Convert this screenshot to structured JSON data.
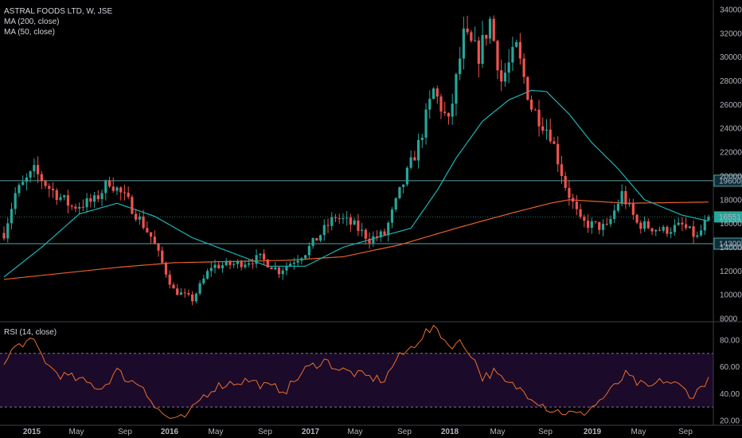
{
  "legend": {
    "symbol": "ASTRAL FOODS LTD, W, JSE",
    "ma200": "MA (200, close)",
    "ma50": "MA (50, close)",
    "rsi": "RSI (14, close)"
  },
  "colors": {
    "background": "#000000",
    "up": "#26a69a",
    "down": "#ef5350",
    "ma200": "#e8602c",
    "ma50": "#1ab5b8",
    "level_line": "#5f9ea0",
    "rsi_line": "#e8702c",
    "rsi_band": "#1c0a2a",
    "axis_text": "#b2b5be"
  },
  "chart_data": [
    {
      "type": "candlestick",
      "title": "ASTRAL FOODS LTD, W, JSE",
      "ylim": [
        7800,
        34600
      ],
      "y_ticks": [
        8000,
        10000,
        12000,
        14000,
        16000,
        18000,
        20000,
        22000,
        24000,
        26000,
        28000,
        30000,
        32000,
        34000
      ],
      "x_ticks": [
        "2015",
        "May",
        "Sep",
        "2016",
        "May",
        "Sep",
        "2017",
        "May",
        "Sep",
        "2018",
        "May",
        "Sep",
        "2019",
        "May",
        "Sep"
      ],
      "horizontal_levels": [
        {
          "value": 19600,
          "label": "19600"
        },
        {
          "value": 14300,
          "label": "14300"
        }
      ],
      "last_price": {
        "value": 16551,
        "label": "16551"
      },
      "price_path": [
        [
          0,
          15200
        ],
        [
          3,
          18500
        ],
        [
          8,
          20400
        ],
        [
          12,
          19000
        ],
        [
          18,
          17400
        ],
        [
          24,
          17900
        ],
        [
          28,
          19600
        ],
        [
          33,
          17800
        ],
        [
          39,
          14900
        ],
        [
          45,
          10400
        ],
        [
          50,
          9600
        ],
        [
          55,
          12400
        ],
        [
          62,
          12600
        ],
        [
          68,
          13100
        ],
        [
          73,
          12000
        ],
        [
          80,
          13600
        ],
        [
          88,
          16600
        ],
        [
          93,
          15800
        ],
        [
          97,
          14700
        ],
        [
          101,
          15100
        ],
        [
          105,
          18600
        ],
        [
          110,
          22600
        ],
        [
          114,
          27200
        ],
        [
          118,
          24400
        ],
        [
          122,
          31700
        ],
        [
          126,
          30200
        ],
        [
          129,
          33100
        ],
        [
          132,
          28000
        ],
        [
          136,
          30700
        ],
        [
          140,
          25800
        ],
        [
          145,
          23600
        ],
        [
          149,
          19200
        ],
        [
          153,
          16100
        ],
        [
          160,
          15600
        ],
        [
          164,
          18500
        ],
        [
          168,
          16000
        ],
        [
          175,
          15400
        ],
        [
          180,
          15800
        ],
        [
          184,
          14800
        ],
        [
          187,
          16551
        ]
      ],
      "ma200_path": [
        [
          0,
          11300
        ],
        [
          30,
          12300
        ],
        [
          45,
          12700
        ],
        [
          60,
          12800
        ],
        [
          75,
          12900
        ],
        [
          90,
          13200
        ],
        [
          105,
          14200
        ],
        [
          120,
          15600
        ],
        [
          135,
          16900
        ],
        [
          145,
          17700
        ],
        [
          150,
          18000
        ],
        [
          165,
          17700
        ],
        [
          187,
          17800
        ]
      ],
      "ma50_path": [
        [
          0,
          11500
        ],
        [
          10,
          14000
        ],
        [
          20,
          16800
        ],
        [
          30,
          17700
        ],
        [
          40,
          16600
        ],
        [
          50,
          14800
        ],
        [
          60,
          13600
        ],
        [
          70,
          12400
        ],
        [
          80,
          12400
        ],
        [
          90,
          14000
        ],
        [
          100,
          14900
        ],
        [
          108,
          15600
        ],
        [
          115,
          18800
        ],
        [
          120,
          21500
        ],
        [
          127,
          24600
        ],
        [
          134,
          26400
        ],
        [
          140,
          27200
        ],
        [
          144,
          27100
        ],
        [
          150,
          25200
        ],
        [
          156,
          22800
        ],
        [
          163,
          20600
        ],
        [
          170,
          18000
        ],
        [
          180,
          16700
        ],
        [
          187,
          16200
        ]
      ]
    },
    {
      "type": "line",
      "title": "RSI (14, close)",
      "ylim": [
        17,
        93
      ],
      "y_ticks": [
        20,
        40,
        60,
        80
      ],
      "y_tick_labels": [
        "20.00",
        "40.00",
        "60.00",
        "80.00"
      ],
      "bands": [
        30,
        70
      ],
      "series": [
        {
          "name": "RSI (14, close)",
          "points": [
            [
              0,
              60
            ],
            [
              2,
              72
            ],
            [
              5,
              78
            ],
            [
              8,
              78
            ],
            [
              12,
              60
            ],
            [
              15,
              54
            ],
            [
              18,
              52
            ],
            [
              22,
              48
            ],
            [
              26,
              44
            ],
            [
              30,
              57
            ],
            [
              33,
              50
            ],
            [
              37,
              46
            ],
            [
              40,
              30
            ],
            [
              43,
              23
            ],
            [
              46,
              20
            ],
            [
              49,
              24
            ],
            [
              52,
              36
            ],
            [
              56,
              45
            ],
            [
              60,
              48
            ],
            [
              65,
              50
            ],
            [
              70,
              45
            ],
            [
              75,
              43
            ],
            [
              80,
              58
            ],
            [
              85,
              65
            ],
            [
              89,
              58
            ],
            [
              93,
              55
            ],
            [
              97,
              52
            ],
            [
              101,
              50
            ],
            [
              104,
              65
            ],
            [
              108,
              74
            ],
            [
              112,
              86
            ],
            [
              115,
              88
            ],
            [
              118,
              76
            ],
            [
              121,
              78
            ],
            [
              124,
              70
            ],
            [
              127,
              52
            ],
            [
              130,
              56
            ],
            [
              133,
              48
            ],
            [
              136,
              45
            ],
            [
              140,
              38
            ],
            [
              145,
              28
            ],
            [
              149,
              26
            ],
            [
              153,
              24
            ],
            [
              157,
              32
            ],
            [
              161,
              42
            ],
            [
              165,
              54
            ],
            [
              168,
              48
            ],
            [
              171,
              44
            ],
            [
              175,
              50
            ],
            [
              179,
              46
            ],
            [
              183,
              38
            ],
            [
              187,
              52
            ]
          ]
        }
      ]
    }
  ]
}
